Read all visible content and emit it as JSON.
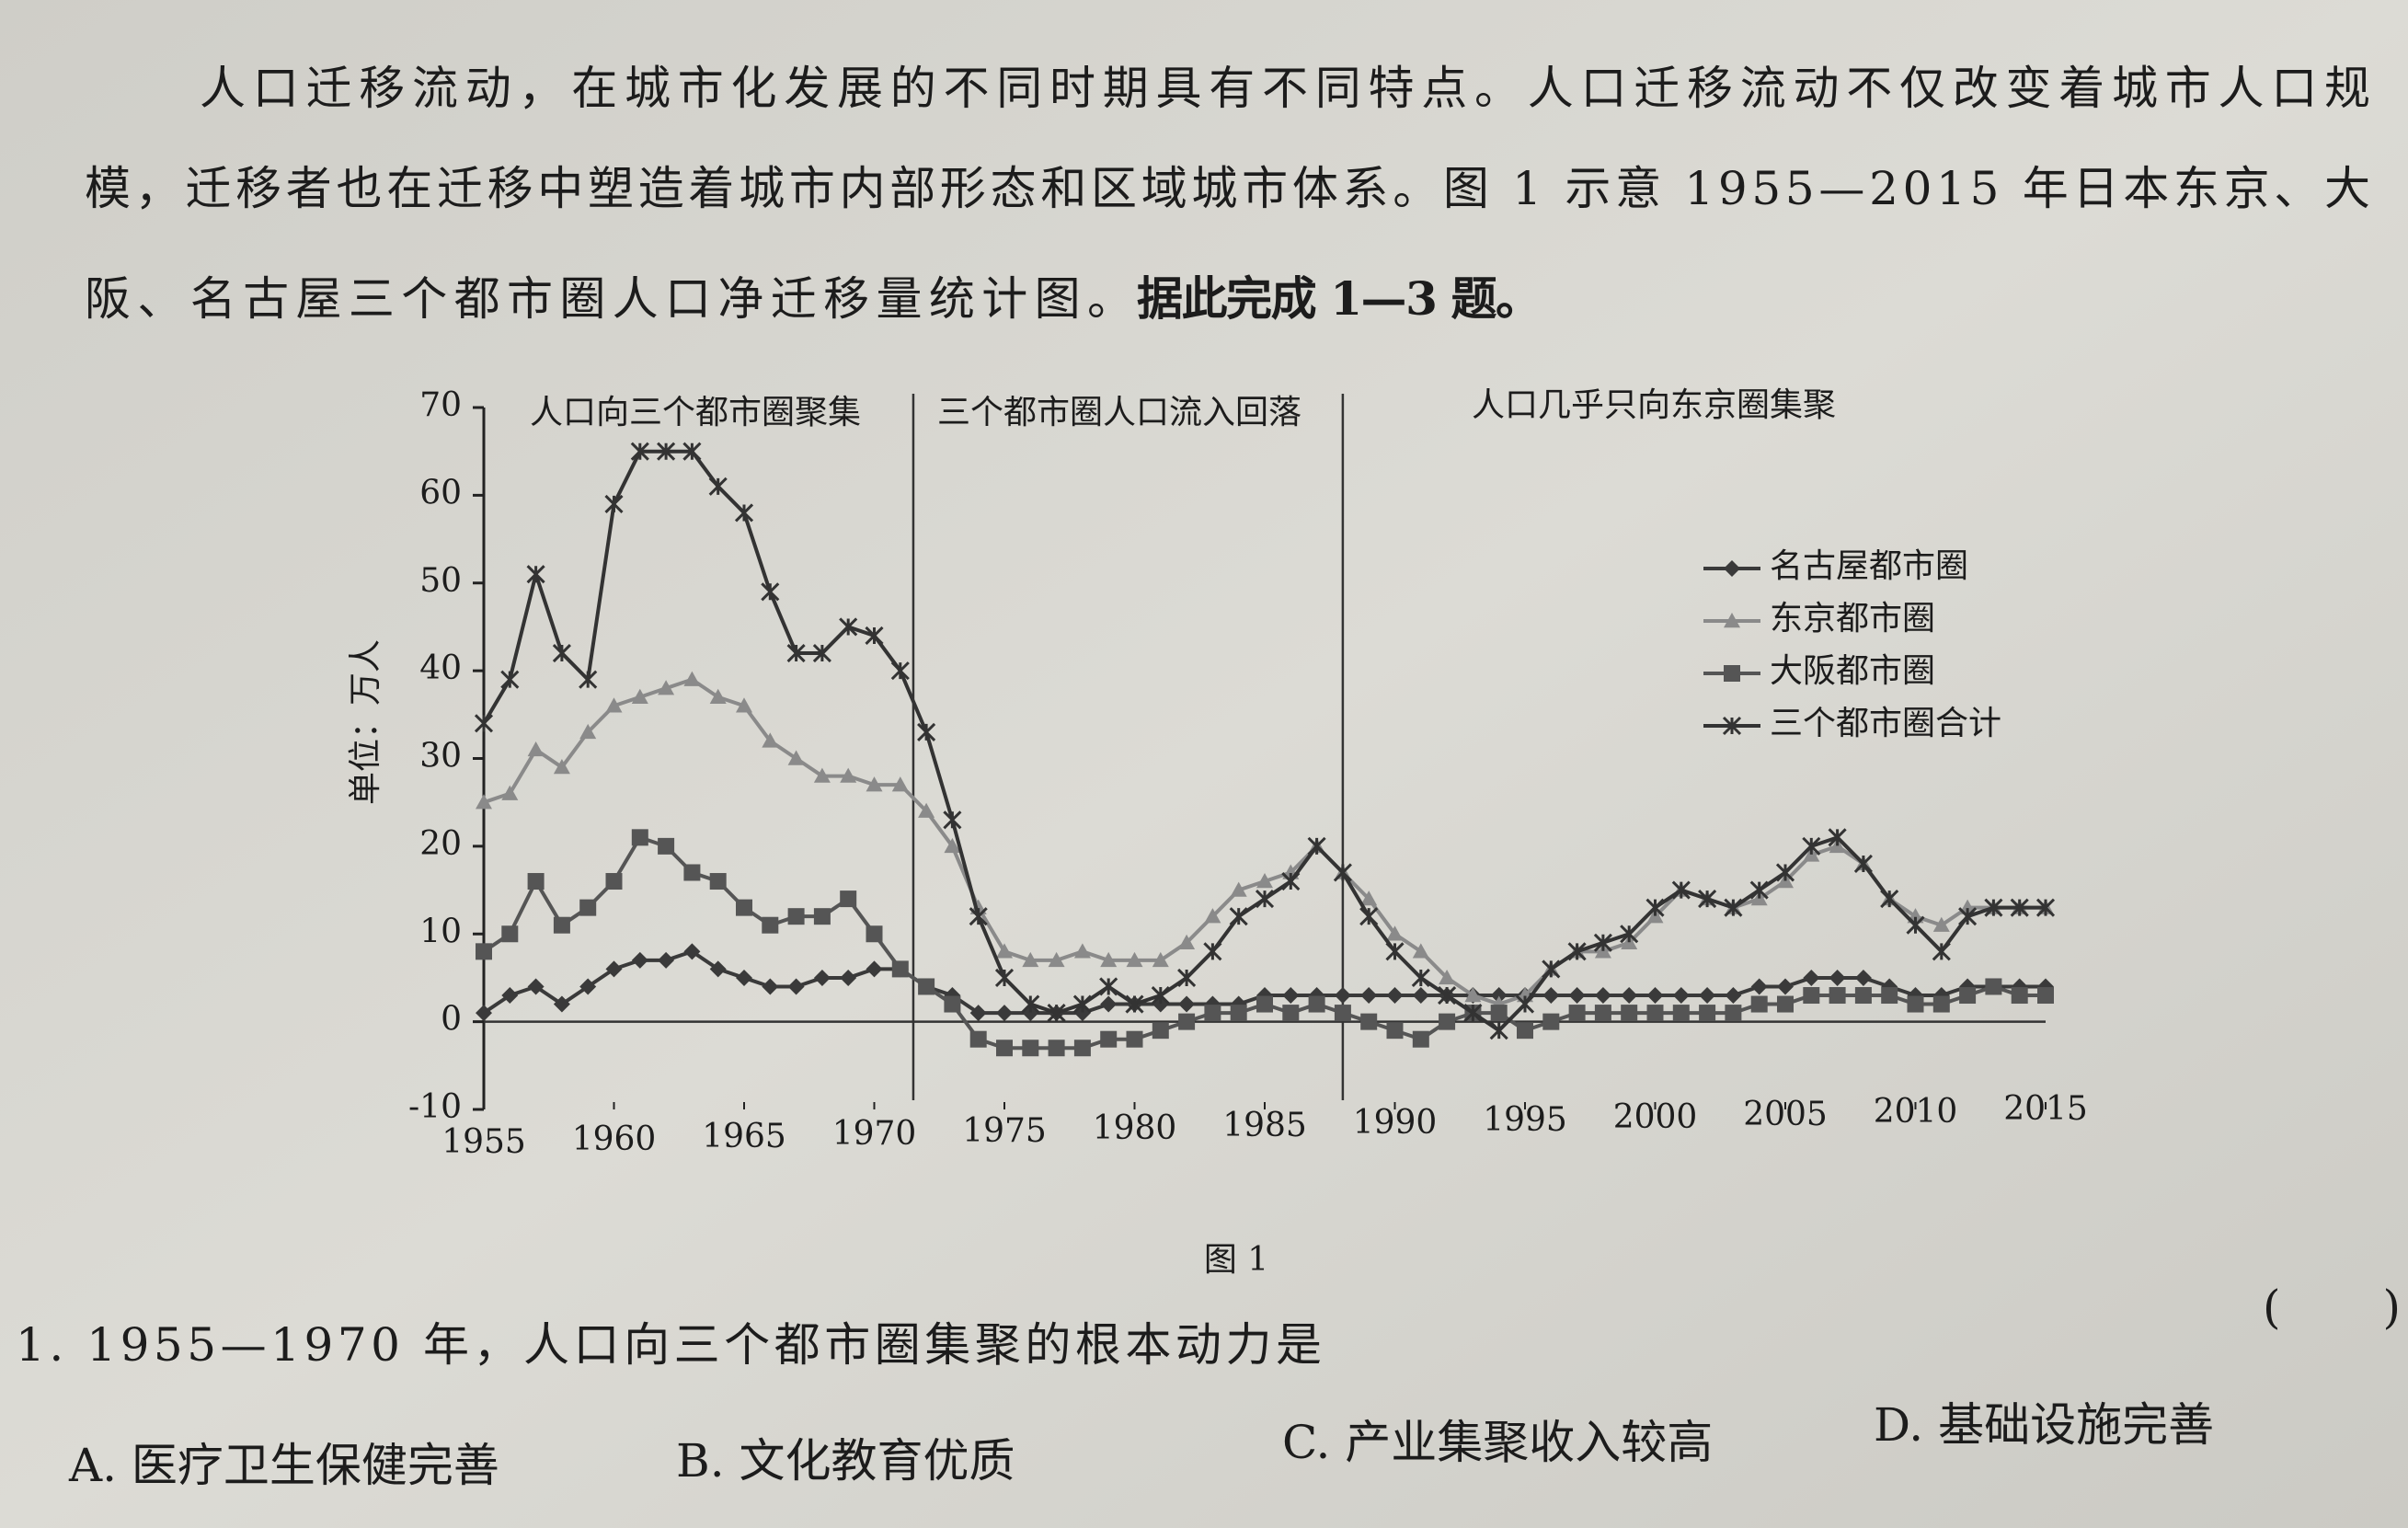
{
  "paragraph": {
    "lines": [
      "人口迁移流动，在城市化发展的不同时期具有不同特点。人口迁移流动不仅改变着城市人口规",
      "模，迁移者也在迁移中塑造着城市内部形态和区域城市体系。图 1 示意 1955—2015 年日本东京、大",
      "阪、名古屋三个都市圈人口净迁移量统计图。"
    ],
    "instruction": "据此完成 1—3 题。"
  },
  "chart_data": {
    "type": "line",
    "y_label": "单位：万人",
    "caption": "图 1",
    "annotations": [
      "人口向三个都市圈聚集",
      "三个都市圈人口流入回落",
      "人口几乎只向东京圈集聚"
    ],
    "dividers": [
      1971.5,
      1988
    ],
    "x": [
      1955,
      1956,
      1957,
      1958,
      1959,
      1960,
      1961,
      1962,
      1963,
      1964,
      1965,
      1966,
      1967,
      1968,
      1969,
      1970,
      1971,
      1972,
      1973,
      1974,
      1975,
      1976,
      1977,
      1978,
      1979,
      1980,
      1981,
      1982,
      1983,
      1984,
      1985,
      1986,
      1987,
      1988,
      1989,
      1990,
      1991,
      1992,
      1993,
      1994,
      1995,
      1996,
      1997,
      1998,
      1999,
      2000,
      2001,
      2002,
      2003,
      2004,
      2005,
      2006,
      2007,
      2008,
      2009,
      2010,
      2011,
      2012,
      2013,
      2014,
      2015
    ],
    "xlim": [
      1955,
      2015
    ],
    "xticks": [
      1955,
      1960,
      1965,
      1970,
      1975,
      1980,
      1985,
      1990,
      1995,
      2000,
      2005,
      2010,
      2015
    ],
    "ylim": [
      -10,
      70
    ],
    "yticks": [
      -10,
      0,
      10,
      20,
      30,
      40,
      50,
      60,
      70
    ],
    "series": [
      {
        "name": "名古屋都市圈",
        "color": "#3a3a3a",
        "marker": "diamond",
        "values": [
          1,
          3,
          4,
          2,
          4,
          6,
          7,
          7,
          8,
          6,
          5,
          4,
          4,
          5,
          5,
          6,
          6,
          4,
          3,
          1,
          1,
          1,
          1,
          1,
          2,
          2,
          2,
          2,
          2,
          2,
          3,
          3,
          3,
          3,
          3,
          3,
          3,
          3,
          3,
          3,
          3,
          3,
          3,
          3,
          3,
          3,
          3,
          3,
          3,
          4,
          4,
          5,
          5,
          5,
          4,
          3,
          3,
          4,
          4,
          4,
          4
        ]
      },
      {
        "name": "东京都市圈",
        "color": "#8a8a8a",
        "marker": "triangle",
        "values": [
          25,
          26,
          31,
          29,
          33,
          36,
          37,
          38,
          39,
          37,
          36,
          32,
          30,
          28,
          28,
          27,
          27,
          24,
          20,
          13,
          8,
          7,
          7,
          8,
          7,
          7,
          7,
          9,
          12,
          15,
          16,
          17,
          20,
          17,
          14,
          10,
          8,
          5,
          3,
          2,
          3,
          6,
          8,
          8,
          9,
          12,
          15,
          14,
          13,
          14,
          16,
          19,
          20,
          18,
          14,
          12,
          11,
          13,
          13,
          13,
          13
        ]
      },
      {
        "name": "大阪都市圈",
        "color": "#555555",
        "marker": "square",
        "values": [
          8,
          10,
          16,
          11,
          13,
          16,
          21,
          20,
          17,
          16,
          13,
          11,
          12,
          12,
          14,
          10,
          6,
          4,
          2,
          -2,
          -3,
          -3,
          -3,
          -3,
          -2,
          -2,
          -1,
          0,
          1,
          1,
          2,
          1,
          2,
          1,
          0,
          -1,
          -2,
          0,
          1,
          1,
          -1,
          0,
          1,
          1,
          1,
          1,
          1,
          1,
          1,
          2,
          2,
          3,
          3,
          3,
          3,
          2,
          2,
          3,
          4,
          3,
          3
        ]
      },
      {
        "name": "三个都市圈合计",
        "color": "#333333",
        "marker": "x",
        "values": [
          34,
          39,
          51,
          42,
          39,
          59,
          65,
          65,
          65,
          61,
          58,
          49,
          42,
          42,
          45,
          44,
          40,
          33,
          23,
          12,
          5,
          2,
          1,
          2,
          4,
          2,
          3,
          5,
          8,
          12,
          14,
          16,
          20,
          17,
          12,
          8,
          5,
          3,
          1,
          -1,
          2,
          6,
          8,
          9,
          10,
          13,
          15,
          14,
          13,
          15,
          17,
          20,
          21,
          18,
          14,
          11,
          8,
          12,
          13,
          13,
          13
        ]
      }
    ]
  },
  "question": {
    "stem": "1. 1955—1970 年，人口向三个都市圈集聚的根本动力是",
    "bracket": "(        )",
    "options": [
      "A. 医疗卫生保健完善",
      "B. 文化教育优质",
      "C. 产业集聚收入较高",
      "D. 基础设施完善"
    ]
  }
}
